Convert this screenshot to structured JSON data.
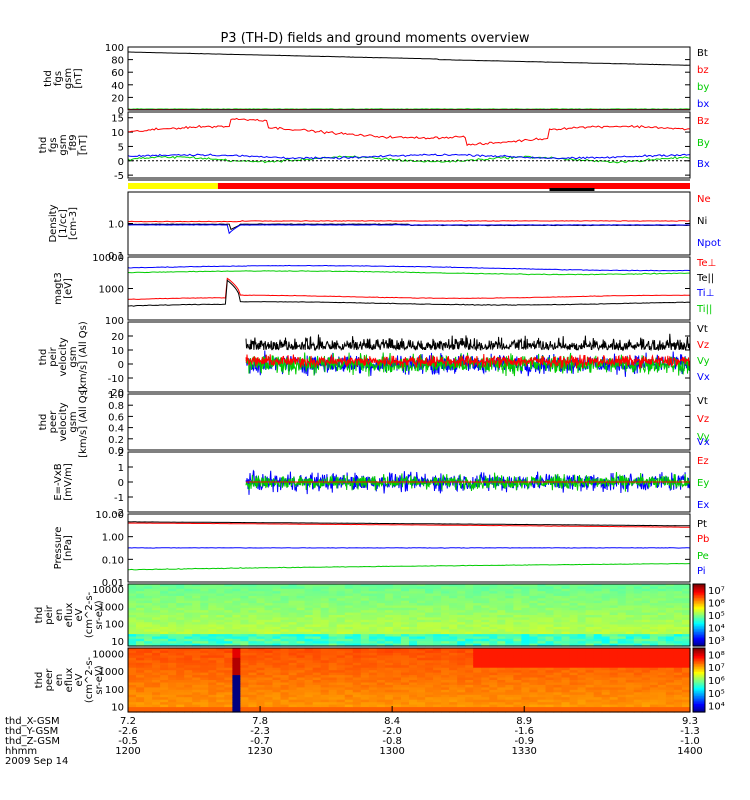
{
  "title": "P3 (TH-D) fields and ground moments overview",
  "chart_data": [
    {
      "type": "line",
      "ylabel": [
        "thd",
        "fgs",
        "gsm",
        "[nT]"
      ],
      "ylim": [
        0,
        100
      ],
      "ticks": [
        "0",
        "20",
        "40",
        "60",
        "80",
        "100"
      ],
      "legend": [
        {
          "name": "Bt",
          "color": "#000000"
        },
        {
          "name": "bz",
          "color": "#ff0000"
        },
        {
          "name": "by",
          "color": "#00cc00"
        },
        {
          "name": "bx",
          "color": "#0000ff"
        }
      ]
    },
    {
      "type": "line",
      "ylabel": [
        "thd",
        "fgs",
        "gsm",
        "_f89",
        "[nT]"
      ],
      "ylim": [
        -6,
        17
      ],
      "ticks": [
        "-5",
        "0",
        "5",
        "10",
        "15"
      ],
      "legend": [
        {
          "name": "Bz",
          "color": "#ff0000"
        },
        {
          "name": "By",
          "color": "#00cc00"
        },
        {
          "name": "Bx",
          "color": "#0000ff"
        }
      ]
    },
    {
      "type": "line",
      "ylabel": [
        "Density",
        "[1/cc]",
        "[cm-3]"
      ],
      "ylim": [
        0.1,
        10
      ],
      "log": true,
      "ticks": [
        "0.1",
        "1.0"
      ],
      "legend": [
        {
          "name": "Ne",
          "color": "#ff0000"
        },
        {
          "name": "Ni",
          "color": "#000000"
        },
        {
          "name": "Npot",
          "color": "#0000ff"
        }
      ]
    },
    {
      "type": "line",
      "ylabel": [
        "magt3",
        "[eV]"
      ],
      "ylim": [
        100,
        10000
      ],
      "log": true,
      "ticks": [
        "100",
        "1000",
        "10000"
      ],
      "legend": [
        {
          "name": "Te⊥",
          "color": "#ff0000"
        },
        {
          "name": "Te||",
          "color": "#000000"
        },
        {
          "name": "Ti⊥",
          "color": "#0000ff"
        },
        {
          "name": "Ti||",
          "color": "#00cc00"
        }
      ]
    },
    {
      "type": "line",
      "ylabel": [
        "thd",
        "peir",
        "velocity",
        "gsm",
        "[km/s] (All Qs)"
      ],
      "ylim": [
        -20,
        30
      ],
      "ticks": [
        "-20",
        "-10",
        "0",
        "10",
        "20"
      ],
      "legend": [
        {
          "name": "Vt",
          "color": "#000000"
        },
        {
          "name": "Vz",
          "color": "#ff0000"
        },
        {
          "name": "Vy",
          "color": "#00cc00"
        },
        {
          "name": "Vx",
          "color": "#0000ff"
        }
      ]
    },
    {
      "type": "line",
      "ylabel": [
        "thd",
        "peer",
        "velocity",
        "gsm",
        "[km/s] (All Qs)"
      ],
      "ylim": [
        0,
        1
      ],
      "ticks": [
        "0.0",
        "0.2",
        "0.4",
        "0.6",
        "0.8",
        "1.0"
      ],
      "legend": [
        {
          "name": "Vt",
          "color": "#000000"
        },
        {
          "name": "Vz",
          "color": "#ff0000"
        },
        {
          "name": "Vy",
          "color": "#00cc00"
        },
        {
          "name": "Vx",
          "color": "#0000ff"
        }
      ]
    },
    {
      "type": "line",
      "ylabel": [
        "E=-VxB",
        "[mV/m]"
      ],
      "ylim": [
        -2,
        2
      ],
      "ticks": [
        "-2",
        "-1",
        "0",
        "1",
        "2"
      ],
      "legend": [
        {
          "name": "Ez",
          "color": "#ff0000"
        },
        {
          "name": "Ey",
          "color": "#00cc00"
        },
        {
          "name": "Ex",
          "color": "#0000ff"
        }
      ]
    },
    {
      "type": "line",
      "ylabel": [
        "Pressure",
        "[nPa]"
      ],
      "ylim": [
        0.01,
        10
      ],
      "log": true,
      "ticks": [
        "0.01",
        "0.10",
        "1.00",
        "10.00"
      ],
      "legend": [
        {
          "name": "Pt",
          "color": "#000000"
        },
        {
          "name": "Pb",
          "color": "#ff0000"
        },
        {
          "name": "Pe",
          "color": "#00cc00"
        },
        {
          "name": "Pi",
          "color": "#0000ff"
        }
      ]
    },
    {
      "type": "heatmap",
      "ylabel": [
        "thd",
        "peir",
        "en",
        "eflux",
        "eV",
        "(cm^2-s-",
        "sr-eV)"
      ],
      "ylim": [
        5,
        20000
      ],
      "log": true,
      "ticks": [
        "10",
        "100",
        "1000",
        "10000"
      ],
      "colorbar": [
        "10³",
        "10⁴",
        "10⁵",
        "10⁶",
        "10⁷"
      ]
    },
    {
      "type": "heatmap",
      "ylabel": [
        "thd",
        "peer",
        "en",
        "eflux",
        "eV",
        "(cm^2-s-",
        "sr-eV)"
      ],
      "ylim": [
        5,
        20000
      ],
      "log": true,
      "ticks": [
        "10",
        "100",
        "1000",
        "10000"
      ],
      "colorbar": [
        "10⁴",
        "10⁵",
        "10⁶",
        "10⁷",
        "10⁸"
      ]
    }
  ],
  "xaxis": {
    "rows": [
      {
        "label": "thd_X-GSM",
        "values": [
          "7.2",
          "7.8",
          "8.4",
          "8.9",
          "9.3"
        ]
      },
      {
        "label": "thd_Y-GSM",
        "values": [
          "-2.6",
          "-2.3",
          "-2.0",
          "-1.6",
          "-1.3"
        ]
      },
      {
        "label": "thd_Z-GSM",
        "values": [
          "-0.5",
          "-0.7",
          "-0.8",
          "-0.9",
          "-1.0"
        ]
      },
      {
        "label": "hhmm",
        "values": [
          "1200",
          "1230",
          "1300",
          "1330",
          "1400"
        ]
      }
    ],
    "date": "2009 Sep 14"
  }
}
